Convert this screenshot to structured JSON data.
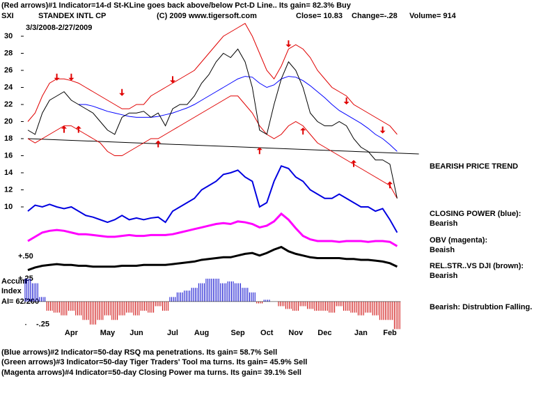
{
  "header": {
    "line1": "(Red arrows)#1 Indicator=14-d St-KLine goes back above/below Pct-D Line.. Its gain= 82.3% Buy",
    "symbol": "SXI",
    "company": "STANDEX INTL CP",
    "copyright": "(C) 2009 www.tigersoft.com",
    "close": "Close= 10.83",
    "change": "Change=-.28",
    "volume": "Volume= 914",
    "dates": "3/3/2008-2/27/2009"
  },
  "labels": {
    "trend": "BEARISH PRICE TREND",
    "cp_title": "CLOSING POWER (blue):",
    "cp_state": "Bearish",
    "obv_title": "OBV (magenta):",
    "obv_state": "Beaish",
    "rs_title": "REL.STR..VS DJI (brown):",
    "rs_state": "Bearish",
    "accum_state": "Bearish: Distrubtion Falling.",
    "rs_level": "+.50",
    "accum1": "Accum",
    "accum2": "Index",
    "ai": "AI= 62/200"
  },
  "footer": [
    "(Blue arrows)#2 Indicator=50-day RSQ ma penetrations. Its gain= 58.7% Sell",
    "(Green arrows)#3 Indicator=50-day Tiger Traders' Tool ma turns. Its gain= 45.9% Sell",
    "(Magenta arrows)#4 Indicator=50-day Closing Power ma turns. Its gain= 39.1% Sell"
  ],
  "chart_data": [
    {
      "type": "line",
      "ylim": [
        2,
        31
      ],
      "yticks": [
        10,
        12,
        14,
        16,
        18,
        20,
        22,
        24,
        26,
        28,
        30
      ],
      "series": [
        {
          "color": "#e00000",
          "values": [
            20,
            21,
            23,
            24.5,
            25,
            25,
            24.8,
            24.5,
            24,
            23.5,
            23,
            22.5,
            22,
            21.5,
            21.5,
            22,
            22,
            23,
            23.5,
            24,
            24.5,
            25,
            25.5,
            26,
            27,
            28,
            29,
            30,
            30.5,
            31,
            31.5,
            30,
            28,
            26,
            25,
            26.5,
            28.5,
            29,
            28.5,
            27.5,
            26,
            25,
            24,
            23.5,
            23,
            22,
            21.5,
            21,
            20.5,
            20,
            19.5,
            18.5
          ]
        },
        {
          "color": "#e00000",
          "values": [
            18,
            17.5,
            18,
            18.5,
            19,
            19.5,
            19.5,
            19,
            18.5,
            18,
            17.5,
            16.5,
            16,
            16,
            16.5,
            17,
            17.5,
            18,
            18,
            18.5,
            19,
            19.5,
            20,
            20.5,
            21,
            21.5,
            22,
            22.5,
            23,
            23,
            22,
            21,
            19.5,
            18.5,
            18,
            18.5,
            19.5,
            20,
            19.5,
            18.5,
            17.5,
            17,
            16.5,
            16,
            15.5,
            15,
            14.5,
            14,
            13.5,
            13,
            12.5,
            11
          ]
        },
        {
          "color": "#0000ff",
          "values": [
            null,
            null,
            null,
            null,
            null,
            null,
            null,
            22,
            22,
            21.8,
            21.5,
            21.2,
            21,
            20.8,
            20.6,
            20.5,
            20.5,
            20.5,
            20.6,
            20.8,
            21,
            21.3,
            21.6,
            22,
            22.5,
            23,
            23.5,
            24,
            24.5,
            25,
            25.3,
            25.2,
            24.5,
            24,
            24.3,
            25,
            25.3,
            25.2,
            24.8,
            24.2,
            23.5,
            22.8,
            22,
            21.3,
            20.8,
            20.3,
            19.8,
            19.2,
            18.5,
            18,
            17.3,
            16.5
          ]
        },
        {
          "color": "#000000",
          "values": [
            19,
            18.5,
            21,
            22.5,
            23,
            23.5,
            22.5,
            22,
            21.5,
            21,
            20,
            19,
            18.5,
            20.5,
            21,
            21,
            21.2,
            20.5,
            21,
            19.5,
            21.5,
            22,
            22,
            23,
            24.5,
            25.5,
            27,
            28,
            27.5,
            28.5,
            27,
            24,
            19,
            18.5,
            22,
            25,
            27,
            26,
            24,
            21,
            20,
            19.5,
            19.5,
            20,
            19.5,
            18,
            17,
            16.5,
            15.5,
            15.5,
            15,
            11
          ]
        },
        {
          "color": "#0000e0",
          "width": 2,
          "values": [
            9.5,
            10.2,
            10,
            10.3,
            10,
            9.8,
            10,
            9.5,
            9,
            8.8,
            8.5,
            8.2,
            8.5,
            9,
            8.5,
            8.7,
            8.5,
            8.7,
            8.8,
            8.2,
            9.5,
            10,
            10.5,
            11,
            12,
            12.5,
            13,
            13.8,
            14,
            14.3,
            13.5,
            13,
            10,
            10.5,
            13,
            14.8,
            14.5,
            13.5,
            13,
            12,
            11.5,
            11,
            11,
            11.5,
            11,
            10.5,
            10,
            10,
            9.5,
            9.8,
            8.5,
            7
          ]
        },
        {
          "color": "#ff00ff",
          "width": 3,
          "values": [
            6,
            6.5,
            7,
            7.2,
            7.3,
            7.2,
            7,
            6.8,
            6.8,
            6.7,
            6.6,
            6.5,
            6.5,
            6.6,
            6.7,
            6.6,
            6.6,
            6.7,
            6.7,
            6.7,
            6.8,
            7,
            7.2,
            7.4,
            7.6,
            7.8,
            8,
            8.1,
            8,
            8.3,
            8.2,
            8,
            7.6,
            7.8,
            8.3,
            9.2,
            8.5,
            7.5,
            6.6,
            6.2,
            6,
            6,
            6,
            5.9,
            6,
            6,
            6,
            5.9,
            6,
            6,
            5.9,
            5.4
          ]
        },
        {
          "color": "#000000",
          "width": 3,
          "values": [
            2.6,
            2.9,
            3.1,
            3.2,
            3.3,
            3.2,
            3.2,
            3.1,
            3.1,
            3,
            3,
            3,
            3,
            3.1,
            3.1,
            3.1,
            3.2,
            3.2,
            3.2,
            3.2,
            3.3,
            3.4,
            3.5,
            3.6,
            3.8,
            3.9,
            4,
            4.1,
            4.1,
            4.3,
            4.5,
            4.6,
            4.3,
            4.6,
            5,
            5.3,
            4.8,
            4.5,
            4.3,
            4.1,
            4,
            4,
            4,
            4,
            3.9,
            3.9,
            3.8,
            3.8,
            3.7,
            3.6,
            3.4,
            3
          ]
        }
      ],
      "trendline": {
        "color": "#000000",
        "x": [
          0,
          54
        ],
        "values": [
          18,
          16.2
        ]
      },
      "arrows": {
        "color": "#e00000",
        "points": [
          {
            "index": 4,
            "value": 24.8,
            "dir": "down"
          },
          {
            "index": 6,
            "value": 24.8,
            "dir": "down"
          },
          {
            "index": 13,
            "value": 23,
            "dir": "down"
          },
          {
            "index": 20,
            "value": 24.5,
            "dir": "down"
          },
          {
            "index": 36,
            "value": 28.7,
            "dir": "down"
          },
          {
            "index": 44,
            "value": 22,
            "dir": "down"
          },
          {
            "index": 49,
            "value": 18.6,
            "dir": "down"
          },
          {
            "index": 5,
            "value": 19.5,
            "dir": "up"
          },
          {
            "index": 7,
            "value": 19.5,
            "dir": "up"
          },
          {
            "index": 18,
            "value": 17.8,
            "dir": "up"
          },
          {
            "index": 32,
            "value": 17,
            "dir": "up"
          },
          {
            "index": 38,
            "value": 19.3,
            "dir": "up"
          },
          {
            "index": 45,
            "value": 15.5,
            "dir": "up"
          },
          {
            "index": 50,
            "value": 13,
            "dir": "up"
          }
        ]
      }
    },
    {
      "type": "bar",
      "ylim": [
        -0.35,
        0.3
      ],
      "yticks": [
        {
          "value": 0.25,
          "label": "+.25"
        },
        {
          "value": -0.25,
          "label": "-.25"
        }
      ],
      "pos_color": "#0000cc",
      "neg_color": "#cc0000",
      "categories": [
        null,
        null,
        null,
        null,
        null,
        null,
        "Apr",
        null,
        null,
        null,
        null,
        "May",
        null,
        null,
        null,
        "Jun",
        null,
        null,
        null,
        null,
        "Jul",
        null,
        null,
        null,
        "Aug",
        null,
        null,
        null,
        null,
        "Sep",
        null,
        null,
        null,
        "Oct",
        null,
        null,
        null,
        "Nov",
        null,
        null,
        null,
        "Dec",
        null,
        null,
        null,
        null,
        "Jan",
        null,
        null,
        null,
        "Feb",
        null
      ],
      "values": [
        0.25,
        0.2,
        0.05,
        -0.1,
        -0.12,
        -0.15,
        -0.1,
        -0.15,
        -0.2,
        -0.25,
        -0.2,
        -0.15,
        -0.2,
        -0.15,
        -0.12,
        -0.15,
        -0.1,
        -0.12,
        -0.05,
        -0.1,
        0.05,
        0.1,
        0.12,
        0.15,
        0.2,
        0.25,
        0.25,
        0.2,
        0.22,
        0.2,
        0.15,
        0.1,
        -0.02,
        0.02,
        0,
        -0.05,
        -0.08,
        -0.1,
        -0.05,
        -0.08,
        -0.1,
        -0.1,
        -0.12,
        -0.05,
        -0.1,
        -0.12,
        -0.15,
        -0.12,
        -0.15,
        -0.2,
        -0.2,
        -0.3
      ]
    }
  ]
}
